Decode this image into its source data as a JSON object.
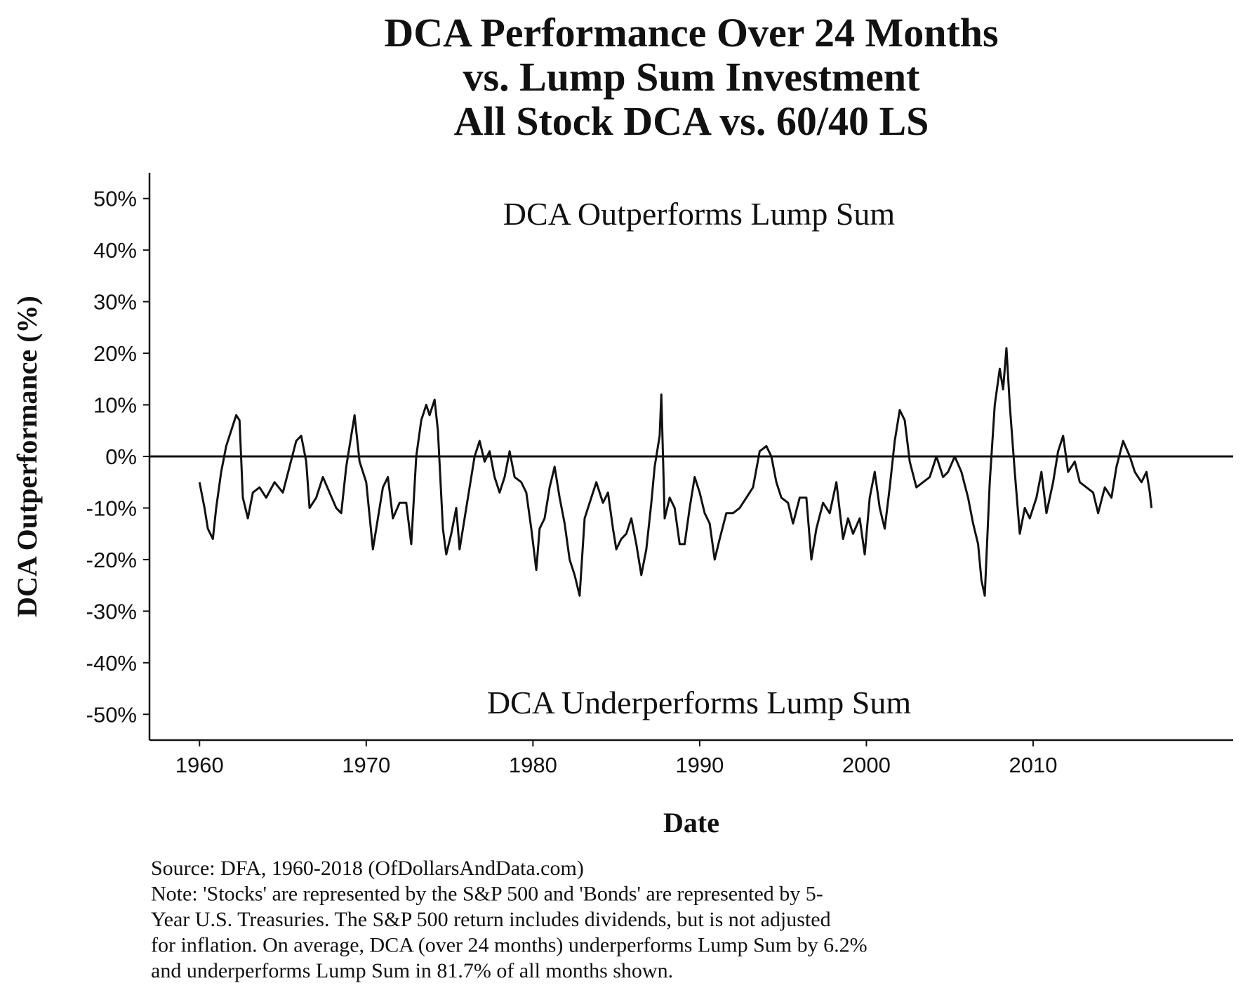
{
  "chart_data": {
    "type": "line",
    "title": [
      "DCA Performance Over 24 Months",
      "vs. Lump Sum Investment",
      "All Stock DCA vs. 60/40 LS"
    ],
    "x_label": "Date",
    "y_label": "DCA Outperformance (%)",
    "annotations": [
      "DCA Outperforms Lump Sum",
      "DCA Underperforms Lump Sum"
    ],
    "caption": [
      "Source:  DFA, 1960-2018 (OfDollarsAndData.com)",
      "Note: 'Stocks' are represented by the S&P 500 and 'Bonds' are represented by 5-",
      "Year U.S. Treasuries. The S&P 500 return includes dividends, but is not adjusted",
      "for inflation. On average, DCA (over 24 months) underperforms Lump Sum by 6.2%",
      "and underperforms Lump Sum in 81.7% of all months shown."
    ],
    "xlim": [
      1957,
      2022
    ],
    "xticks": [
      1960,
      1970,
      1980,
      1990,
      2000,
      2010
    ],
    "ylim": [
      -55,
      55
    ],
    "yticks": [
      {
        "value": 50,
        "label": "50%"
      },
      {
        "value": 40,
        "label": "40%"
      },
      {
        "value": 30,
        "label": "30%"
      },
      {
        "value": 20,
        "label": "20%"
      },
      {
        "value": 10,
        "label": "10%"
      },
      {
        "value": 0,
        "label": "0%"
      },
      {
        "value": -10,
        "label": "-10%"
      },
      {
        "value": -20,
        "label": "-20%"
      },
      {
        "value": -30,
        "label": "-30%"
      },
      {
        "value": -40,
        "label": "-40%"
      },
      {
        "value": -50,
        "label": "-50%"
      }
    ],
    "hline": 0,
    "grid": false,
    "series": [
      {
        "color": "#111111",
        "x": [
          1960.0,
          1960.3,
          1960.5,
          1960.8,
          1961.0,
          1961.3,
          1961.6,
          1961.9,
          1962.2,
          1962.4,
          1962.6,
          1962.9,
          1963.2,
          1963.6,
          1964.0,
          1964.5,
          1965.0,
          1965.4,
          1965.8,
          1966.1,
          1966.4,
          1966.6,
          1967.0,
          1967.4,
          1967.8,
          1968.2,
          1968.5,
          1968.8,
          1969.1,
          1969.3,
          1969.6,
          1970.0,
          1970.4,
          1970.7,
          1971.0,
          1971.3,
          1971.6,
          1972.0,
          1972.4,
          1972.7,
          1973.0,
          1973.3,
          1973.6,
          1973.8,
          1974.1,
          1974.3,
          1974.6,
          1974.8,
          1975.1,
          1975.4,
          1975.6,
          1975.9,
          1976.2,
          1976.5,
          1976.8,
          1977.1,
          1977.4,
          1977.7,
          1978.0,
          1978.3,
          1978.6,
          1978.9,
          1979.3,
          1979.6,
          1979.9,
          1980.2,
          1980.4,
          1980.7,
          1981.0,
          1981.3,
          1981.6,
          1981.9,
          1982.2,
          1982.5,
          1982.8,
          1983.1,
          1983.5,
          1983.8,
          1984.2,
          1984.5,
          1984.8,
          1985.0,
          1985.3,
          1985.6,
          1985.9,
          1986.2,
          1986.5,
          1986.8,
          1987.1,
          1987.3,
          1987.6,
          1987.7,
          1987.9,
          1988.2,
          1988.5,
          1988.8,
          1989.1,
          1989.4,
          1989.7,
          1990.0,
          1990.3,
          1990.6,
          1990.9,
          1991.2,
          1991.6,
          1992.0,
          1992.4,
          1992.8,
          1993.2,
          1993.6,
          1994.0,
          1994.3,
          1994.6,
          1994.9,
          1995.3,
          1995.6,
          1996.0,
          1996.4,
          1996.7,
          1997.0,
          1997.4,
          1997.8,
          1998.2,
          1998.6,
          1998.9,
          1999.2,
          1999.6,
          1999.9,
          2000.2,
          2000.5,
          2000.8,
          2001.1,
          2001.4,
          2001.7,
          2002.0,
          2002.3,
          2002.6,
          2003.0,
          2003.4,
          2003.8,
          2004.2,
          2004.6,
          2004.9,
          2005.3,
          2005.7,
          2006.1,
          2006.4,
          2006.7,
          2006.9,
          2007.1,
          2007.4,
          2007.7,
          2008.0,
          2008.2,
          2008.4,
          2008.6,
          2008.9,
          2009.2,
          2009.5,
          2009.8,
          2010.2,
          2010.5,
          2010.8,
          2011.2,
          2011.5,
          2011.8,
          2012.1,
          2012.5,
          2012.8,
          2013.2,
          2013.6,
          2013.9,
          2014.3,
          2014.7,
          2015.0,
          2015.4,
          2015.8,
          2016.1,
          2016.5,
          2016.8,
          2017.0,
          2017.1
        ],
        "values": [
          -5,
          -10,
          -14,
          -16,
          -10,
          -3,
          2,
          5,
          8,
          7,
          -8,
          -12,
          -7,
          -6,
          -8,
          -5,
          -7,
          -2,
          3,
          4,
          -1,
          -10,
          -8,
          -4,
          -7,
          -10,
          -11,
          -2,
          4,
          8,
          -1,
          -5,
          -18,
          -12,
          -6,
          -4,
          -12,
          -9,
          -9,
          -17,
          0,
          7,
          10,
          8,
          11,
          5,
          -14,
          -19,
          -15,
          -10,
          -18,
          -12,
          -6,
          0,
          3,
          -1,
          1,
          -4,
          -7,
          -4,
          1,
          -4,
          -5,
          -7,
          -14,
          -22,
          -14,
          -12,
          -6,
          -2,
          -8,
          -13,
          -20,
          -23,
          -27,
          -12,
          -8,
          -5,
          -9,
          -7,
          -14,
          -18,
          -16,
          -15,
          -12,
          -17,
          -23,
          -18,
          -9,
          -2,
          4,
          12,
          -12,
          -8,
          -10,
          -17,
          -17,
          -10,
          -4,
          -7,
          -11,
          -13,
          -20,
          -16,
          -11,
          -11,
          -10,
          -8,
          -6,
          1,
          2,
          0,
          -5,
          -8,
          -9,
          -13,
          -8,
          -8,
          -20,
          -14,
          -9,
          -11,
          -5,
          -16,
          -12,
          -15,
          -12,
          -19,
          -8,
          -3,
          -10,
          -14,
          -6,
          3,
          9,
          7,
          -1,
          -6,
          -5,
          -4,
          0,
          -4,
          -3,
          0,
          -3,
          -8,
          -13,
          -17,
          -24,
          -27,
          -5,
          10,
          17,
          13,
          21,
          10,
          -3,
          -15,
          -10,
          -12,
          -8,
          -3,
          -11,
          -5,
          1,
          4,
          -3,
          -1,
          -5,
          -6,
          -7,
          -11,
          -6,
          -8,
          -2,
          3,
          0,
          -3,
          -5,
          -3,
          -7,
          -10
        ]
      }
    ]
  }
}
